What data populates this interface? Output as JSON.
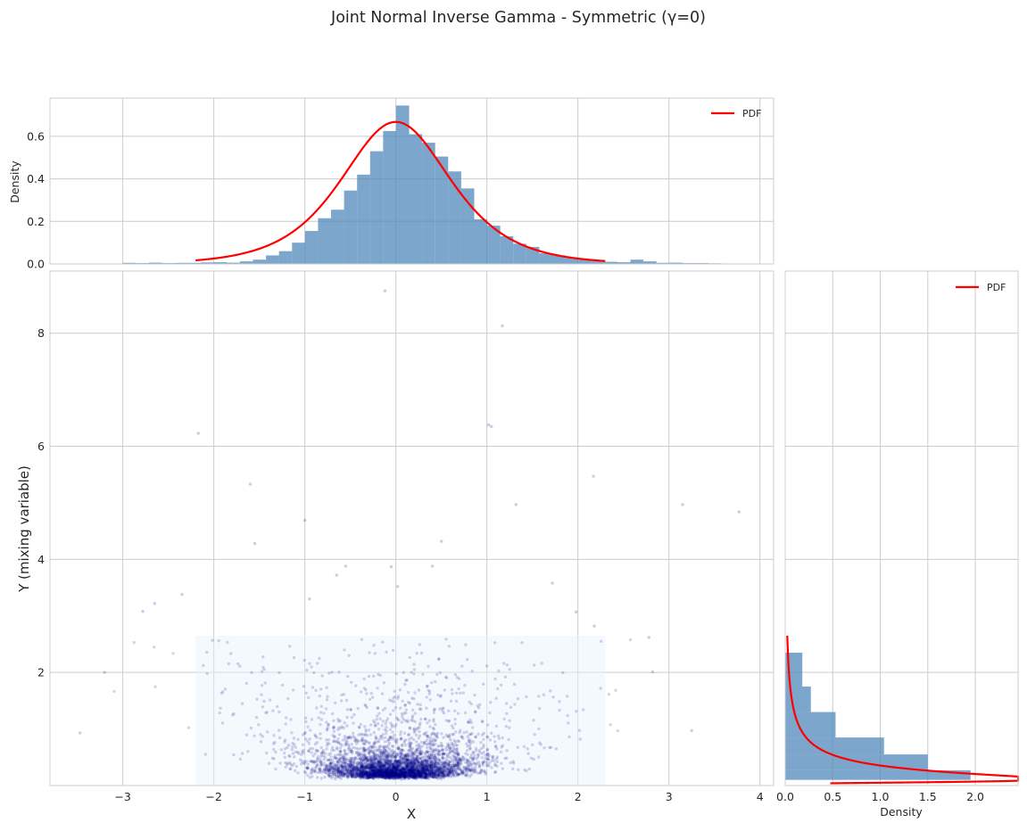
{
  "figure": {
    "title": "Joint Normal Inverse Gamma - Symmetric (γ=0)"
  },
  "colors": {
    "hist_fill": "#4a84b8",
    "pdf_line": "#ff0000",
    "scatter_points": "#00008b",
    "grid": "#cccccc",
    "region_fill": "#e6f1fa"
  },
  "chart_data": [
    {
      "id": "top-marginal",
      "type": "bar",
      "title": "",
      "xlabel": "",
      "ylabel": "Density",
      "xlim": [
        -3.8,
        4.15
      ],
      "ylim": [
        0,
        0.78
      ],
      "xticks": [
        -3,
        -2,
        -1,
        0,
        1,
        2,
        3,
        4
      ],
      "yticks": [
        0.0,
        0.2,
        0.4,
        0.6
      ],
      "ytick_labels": [
        "0.0",
        "0.2",
        "0.4",
        "0.6"
      ],
      "show_xtick_labels": false,
      "grid": true,
      "legend": {
        "placement": "top-right",
        "entries": [
          "PDF"
        ]
      },
      "bin_width": 0.143,
      "bin_start": -3.0,
      "values": [
        0.005,
        0.004,
        0.006,
        0.004,
        0.005,
        0.005,
        0.007,
        0.008,
        0.006,
        0.012,
        0.02,
        0.04,
        0.06,
        0.1,
        0.155,
        0.215,
        0.255,
        0.345,
        0.42,
        0.53,
        0.625,
        0.745,
        0.61,
        0.57,
        0.505,
        0.435,
        0.355,
        0.21,
        0.18,
        0.13,
        0.095,
        0.08,
        0.05,
        0.04,
        0.03,
        0.02,
        0.015,
        0.01,
        0.008,
        0.02,
        0.012,
        0.005,
        0.006,
        0.004,
        0.004,
        0.003,
        0.0,
        0.0,
        0.0,
        0.0,
        0.0
      ],
      "series": [
        {
          "name": "PDF",
          "x_range": [
            -2.2,
            2.3
          ],
          "kind": "nig-marginal-x",
          "alpha": 1.6,
          "delta": 1.0,
          "peak": 0.668
        }
      ]
    },
    {
      "id": "joint-scatter",
      "type": "scatter",
      "title": "",
      "xlabel": "X",
      "ylabel": "Y (mixing variable)",
      "xlim": [
        -3.8,
        4.15
      ],
      "ylim": [
        0.0,
        9.1
      ],
      "xticks": [
        -3,
        -2,
        -1,
        0,
        1,
        2,
        3,
        4
      ],
      "xtick_labels": [
        "−3",
        "−2",
        "−1",
        "0",
        "1",
        "2",
        "3",
        "4"
      ],
      "yticks": [
        2,
        4,
        6,
        8
      ],
      "ytick_labels": [
        "2",
        "4",
        "6",
        "8"
      ],
      "grid": true,
      "shaded_region": {
        "x": [
          -2.2,
          2.3
        ],
        "y": [
          0.0,
          2.65
        ]
      },
      "points_sampled": {
        "count": 4200,
        "x_sd_factor": 1.0,
        "y_mode": 0.35
      },
      "outliers": [
        [
          -0.12,
          8.75
        ],
        [
          1.17,
          8.13
        ],
        [
          -2.17,
          6.23
        ],
        [
          1.05,
          6.35
        ],
        [
          1.02,
          6.38
        ],
        [
          -1.6,
          5.33
        ],
        [
          2.17,
          5.47
        ],
        [
          3.15,
          4.97
        ],
        [
          3.77,
          4.84
        ],
        [
          1.32,
          4.97
        ],
        [
          -1.55,
          4.28
        ],
        [
          -1.0,
          4.69
        ],
        [
          0.5,
          4.32
        ],
        [
          -0.55,
          3.88
        ],
        [
          -0.05,
          3.87
        ],
        [
          0.4,
          3.88
        ],
        [
          -0.95,
          3.3
        ],
        [
          -0.65,
          3.72
        ],
        [
          0.02,
          3.52
        ],
        [
          -2.35,
          3.38
        ],
        [
          -2.78,
          3.08
        ],
        [
          -2.65,
          3.22
        ],
        [
          1.72,
          3.58
        ],
        [
          1.98,
          3.07
        ],
        [
          2.18,
          2.82
        ],
        [
          2.78,
          2.62
        ],
        [
          -3.2,
          2.0
        ],
        [
          -3.47,
          0.93
        ],
        [
          2.82,
          2.01
        ],
        [
          3.25,
          0.97
        ]
      ]
    },
    {
      "id": "right-marginal",
      "type": "bar",
      "orientation": "horizontal",
      "title": "",
      "xlabel": "Density",
      "ylabel": "",
      "xlim": [
        0.0,
        2.45
      ],
      "ylim": [
        0.0,
        9.1
      ],
      "xticks": [
        0.0,
        0.5,
        1.0,
        1.5,
        2.0
      ],
      "xtick_labels": [
        "0.0",
        "0.5",
        "1.0",
        "1.5",
        "2.0"
      ],
      "show_ytick_labels": false,
      "grid": true,
      "legend": {
        "placement": "top-right",
        "entries": [
          "PDF"
        ]
      },
      "bin_edges": [
        0.0,
        0.1,
        0.27,
        0.55,
        0.85,
        1.3,
        1.75,
        2.35,
        2.75
      ],
      "values": [
        0.0,
        1.95,
        1.5,
        1.04,
        0.53,
        0.27,
        0.18,
        0.0
      ],
      "series": [
        {
          "name": "PDF",
          "kind": "inverse-gamma",
          "alpha": 1.2,
          "beta": 0.25,
          "y_range": [
            0.04,
            2.65
          ]
        }
      ]
    }
  ]
}
